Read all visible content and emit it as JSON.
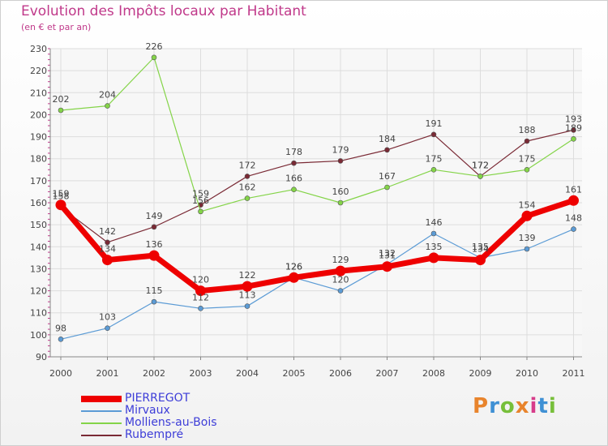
{
  "title": "Evolution des Impôts locaux par Habitant",
  "subtitle": "(en € et par an)",
  "brand": {
    "letters": [
      "P",
      "r",
      "o",
      "x",
      "i",
      "t",
      "i"
    ],
    "colors": [
      "#e8842c",
      "#3f90d4",
      "#77bf3a",
      "#e8842c",
      "#d73c8a",
      "#3f90d4",
      "#77bf3a"
    ]
  },
  "chart_data": {
    "type": "line",
    "categories": [
      "2000",
      "2001",
      "2002",
      "2003",
      "2004",
      "2005",
      "2006",
      "2007",
      "2008",
      "2009",
      "2010",
      "2011"
    ],
    "ylim": [
      90,
      230
    ],
    "yticks": [
      90,
      100,
      110,
      120,
      130,
      140,
      150,
      160,
      170,
      180,
      190,
      200,
      210,
      220,
      230
    ],
    "grid": true,
    "legend_position": "bottom-left",
    "series": [
      {
        "name": "PIERREGOT",
        "color": "#ee0000",
        "values": [
          159,
          134,
          136,
          120,
          122,
          126,
          129,
          131,
          135,
          134,
          154,
          161
        ]
      },
      {
        "name": "Mirvaux",
        "color": "#5b9bd5",
        "values": [
          98,
          103,
          115,
          112,
          113,
          126,
          120,
          132,
          146,
          135,
          139,
          148
        ]
      },
      {
        "name": "Molliens-au-Bois",
        "color": "#84d448",
        "values": [
          202,
          204,
          226,
          156,
          162,
          166,
          160,
          167,
          175,
          172,
          175,
          189
        ]
      },
      {
        "name": "Rubempré",
        "color": "#7a2a35",
        "values": [
          158,
          142,
          149,
          159,
          172,
          178,
          179,
          184,
          191,
          172,
          188,
          193
        ]
      }
    ]
  }
}
